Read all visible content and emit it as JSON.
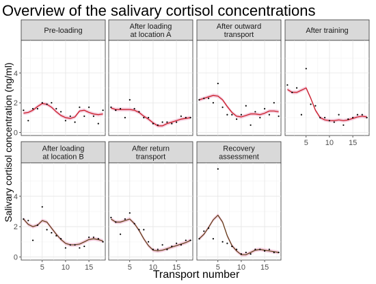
{
  "chart_data": {
    "type": "scatter",
    "title": "Overview of the salivary cortisol concentrations",
    "xlabel": "Transport number",
    "ylabel": "Salivary cortisol concentration (ng/ml)",
    "xlim": [
      0.5,
      18.5
    ],
    "ylim": [
      -0.2,
      6.2
    ],
    "x_ticks": [
      5,
      10,
      15
    ],
    "y_ticks": [
      0,
      2,
      4
    ],
    "grid": true,
    "smooth_color_top": "#c8141e",
    "smooth_color_bottom": "#5a3a10",
    "ribbon_color": "#f0b8d0",
    "panels": [
      {
        "label": [
          "Pre-loading"
        ],
        "points": [
          [
            1,
            1.5
          ],
          [
            2,
            0.8
          ],
          [
            3,
            1.6
          ],
          [
            4,
            1.6
          ],
          [
            5,
            2.0
          ],
          [
            6,
            1.9
          ],
          [
            7,
            2.0
          ],
          [
            8,
            1.6
          ],
          [
            9,
            1.4
          ],
          [
            10,
            0.8
          ],
          [
            11,
            1.1
          ],
          [
            12,
            0.7
          ],
          [
            13,
            1.7
          ],
          [
            14,
            1.1
          ],
          [
            15,
            1.7
          ],
          [
            16,
            1.1
          ],
          [
            17,
            0.6
          ],
          [
            18,
            1.5
          ]
        ],
        "smooth": [
          [
            1,
            1.3
          ],
          [
            2,
            1.35
          ],
          [
            3,
            1.5
          ],
          [
            4,
            1.75
          ],
          [
            5,
            1.95
          ],
          [
            6,
            1.9
          ],
          [
            7,
            1.7
          ],
          [
            8,
            1.4
          ],
          [
            9,
            1.15
          ],
          [
            10,
            1.0
          ],
          [
            11,
            0.95
          ],
          [
            12,
            1.05
          ],
          [
            13,
            1.45
          ],
          [
            14,
            1.5
          ],
          [
            15,
            1.35
          ],
          [
            16,
            1.25
          ],
          [
            17,
            1.2
          ],
          [
            18,
            1.25
          ]
        ]
      },
      {
        "label": [
          "After loading",
          "at location A"
        ],
        "points": [
          [
            1,
            1.7
          ],
          [
            2,
            1.5
          ],
          [
            3,
            1.6
          ],
          [
            4,
            1.0
          ],
          [
            5,
            2.2
          ],
          [
            6,
            1.6
          ],
          [
            7,
            1.4
          ],
          [
            8,
            1.0
          ],
          [
            9,
            1.0
          ],
          [
            10,
            0.6
          ],
          [
            11,
            0.5
          ],
          [
            12,
            0.7
          ],
          [
            13,
            0.7
          ],
          [
            14,
            0.6
          ],
          [
            15,
            0.7
          ],
          [
            16,
            1.1
          ],
          [
            17,
            1.0
          ],
          [
            18,
            1.0
          ]
        ],
        "smooth": [
          [
            1,
            1.65
          ],
          [
            2,
            1.55
          ],
          [
            3,
            1.55
          ],
          [
            4,
            1.55
          ],
          [
            5,
            1.55
          ],
          [
            6,
            1.5
          ],
          [
            7,
            1.35
          ],
          [
            8,
            1.1
          ],
          [
            9,
            0.9
          ],
          [
            10,
            0.65
          ],
          [
            11,
            0.45
          ],
          [
            12,
            0.45
          ],
          [
            13,
            0.6
          ],
          [
            14,
            0.7
          ],
          [
            15,
            0.8
          ],
          [
            16,
            0.9
          ],
          [
            17,
            0.95
          ],
          [
            18,
            1.0
          ]
        ]
      },
      {
        "label": [
          "After outward",
          "transport"
        ],
        "points": [
          [
            1,
            2.2
          ],
          [
            2,
            2.3
          ],
          [
            3,
            2.3
          ],
          [
            4,
            2.0
          ],
          [
            5,
            3.3
          ],
          [
            6,
            1.7
          ],
          [
            7,
            1.2
          ],
          [
            8,
            1.2
          ],
          [
            9,
            0.9
          ],
          [
            10,
            1.2
          ],
          [
            11,
            1.8
          ],
          [
            12,
            0.5
          ],
          [
            13,
            1.4
          ],
          [
            14,
            1.0
          ],
          [
            15,
            1.6
          ],
          [
            16,
            1.2
          ],
          [
            17,
            2.0
          ],
          [
            18,
            1.1
          ]
        ],
        "smooth": [
          [
            1,
            2.2
          ],
          [
            2,
            2.3
          ],
          [
            3,
            2.4
          ],
          [
            4,
            2.5
          ],
          [
            5,
            2.45
          ],
          [
            6,
            2.2
          ],
          [
            7,
            1.75
          ],
          [
            8,
            1.35
          ],
          [
            9,
            1.1
          ],
          [
            10,
            1.05
          ],
          [
            11,
            1.15
          ],
          [
            12,
            1.25
          ],
          [
            13,
            1.25
          ],
          [
            14,
            1.2
          ],
          [
            15,
            1.3
          ],
          [
            16,
            1.45
          ],
          [
            17,
            1.45
          ],
          [
            18,
            1.4
          ]
        ]
      },
      {
        "label": [
          "After training"
        ],
        "points": [
          [
            1,
            3.2
          ],
          [
            2,
            2.7
          ],
          [
            3,
            3.0
          ],
          [
            4,
            1.2
          ],
          [
            5,
            4.3
          ],
          [
            6,
            1.9
          ],
          [
            7,
            1.8
          ],
          [
            8,
            1.0
          ],
          [
            9,
            1.0
          ],
          [
            10,
            0.8
          ],
          [
            11,
            0.7
          ],
          [
            12,
            1.2
          ],
          [
            13,
            0.5
          ],
          [
            14,
            0.9
          ],
          [
            15,
            1.0
          ],
          [
            16,
            1.2
          ],
          [
            17,
            1.2
          ],
          [
            18,
            1.0
          ]
        ],
        "smooth": [
          [
            1,
            2.9
          ],
          [
            2,
            2.7
          ],
          [
            3,
            2.7
          ],
          [
            4,
            2.85
          ],
          [
            5,
            3.0
          ],
          [
            6,
            2.3
          ],
          [
            7,
            1.5
          ],
          [
            8,
            1.0
          ],
          [
            9,
            0.85
          ],
          [
            10,
            0.8
          ],
          [
            11,
            0.8
          ],
          [
            12,
            0.85
          ],
          [
            13,
            0.8
          ],
          [
            14,
            0.85
          ],
          [
            15,
            0.95
          ],
          [
            16,
            1.05
          ],
          [
            17,
            1.1
          ],
          [
            18,
            1.05
          ]
        ]
      },
      {
        "label": [
          "After loading",
          "at location B"
        ],
        "points": [
          [
            1,
            2.5
          ],
          [
            2,
            2.4
          ],
          [
            3,
            1.1
          ],
          [
            4,
            2.1
          ],
          [
            5,
            3.3
          ],
          [
            6,
            1.8
          ],
          [
            7,
            1.6
          ],
          [
            8,
            1.4
          ],
          [
            9,
            1.2
          ],
          [
            10,
            0.6
          ],
          [
            11,
            0.8
          ],
          [
            12,
            0.8
          ],
          [
            13,
            0.6
          ],
          [
            14,
            0.7
          ],
          [
            15,
            1.3
          ],
          [
            16,
            1.3
          ],
          [
            17,
            1.2
          ],
          [
            18,
            1.0
          ]
        ],
        "smooth": [
          [
            1,
            2.5
          ],
          [
            2,
            2.15
          ],
          [
            3,
            2.0
          ],
          [
            4,
            2.1
          ],
          [
            5,
            2.4
          ],
          [
            6,
            2.3
          ],
          [
            7,
            1.9
          ],
          [
            8,
            1.5
          ],
          [
            9,
            1.15
          ],
          [
            10,
            0.9
          ],
          [
            11,
            0.8
          ],
          [
            12,
            0.8
          ],
          [
            13,
            0.85
          ],
          [
            14,
            1.0
          ],
          [
            15,
            1.15
          ],
          [
            16,
            1.2
          ],
          [
            17,
            1.15
          ],
          [
            18,
            1.05
          ]
        ]
      },
      {
        "label": [
          "After return",
          "transport"
        ],
        "points": [
          [
            1,
            2.6
          ],
          [
            2,
            2.3
          ],
          [
            3,
            1.5
          ],
          [
            4,
            2.5
          ],
          [
            5,
            2.9
          ],
          [
            6,
            2.2
          ],
          [
            7,
            1.8
          ],
          [
            8,
            1.8
          ],
          [
            9,
            1.0
          ],
          [
            10,
            0.5
          ],
          [
            11,
            0.5
          ],
          [
            12,
            0.8
          ],
          [
            13,
            0.5
          ],
          [
            14,
            0.7
          ],
          [
            15,
            0.9
          ],
          [
            16,
            0.8
          ],
          [
            17,
            1.1
          ],
          [
            18,
            1.1
          ]
        ],
        "smooth": [
          [
            1,
            2.5
          ],
          [
            2,
            2.3
          ],
          [
            3,
            2.3
          ],
          [
            4,
            2.4
          ],
          [
            5,
            2.5
          ],
          [
            6,
            2.2
          ],
          [
            7,
            1.75
          ],
          [
            8,
            1.2
          ],
          [
            9,
            0.75
          ],
          [
            10,
            0.45
          ],
          [
            11,
            0.4
          ],
          [
            12,
            0.45
          ],
          [
            13,
            0.55
          ],
          [
            14,
            0.65
          ],
          [
            15,
            0.75
          ],
          [
            16,
            0.85
          ],
          [
            17,
            0.95
          ],
          [
            18,
            1.1
          ]
        ]
      },
      {
        "label": [
          "Recovery",
          "assessment"
        ],
        "points": [
          [
            1,
            1.2
          ],
          [
            2,
            1.7
          ],
          [
            3,
            1.9
          ],
          [
            4,
            1.2
          ],
          [
            5,
            5.8
          ],
          [
            6,
            1.0
          ],
          [
            7,
            0.9
          ],
          [
            8,
            0.7
          ],
          [
            9,
            0.5
          ],
          [
            10,
            0.2
          ],
          [
            11,
            0.3
          ],
          [
            12,
            0.2
          ],
          [
            13,
            0.5
          ],
          [
            14,
            0.5
          ],
          [
            15,
            0.4
          ],
          [
            16,
            0.5
          ],
          [
            17,
            0.3
          ],
          [
            18,
            0.3
          ]
        ],
        "smooth": [
          [
            1,
            1.2
          ],
          [
            2,
            1.5
          ],
          [
            3,
            1.95
          ],
          [
            4,
            2.45
          ],
          [
            5,
            2.75
          ],
          [
            6,
            2.3
          ],
          [
            7,
            1.4
          ],
          [
            8,
            0.75
          ],
          [
            9,
            0.4
          ],
          [
            10,
            0.15
          ],
          [
            11,
            0.15
          ],
          [
            12,
            0.3
          ],
          [
            13,
            0.45
          ],
          [
            14,
            0.5
          ],
          [
            15,
            0.45
          ],
          [
            16,
            0.4
          ],
          [
            17,
            0.35
          ],
          [
            18,
            0.3
          ]
        ]
      }
    ]
  }
}
